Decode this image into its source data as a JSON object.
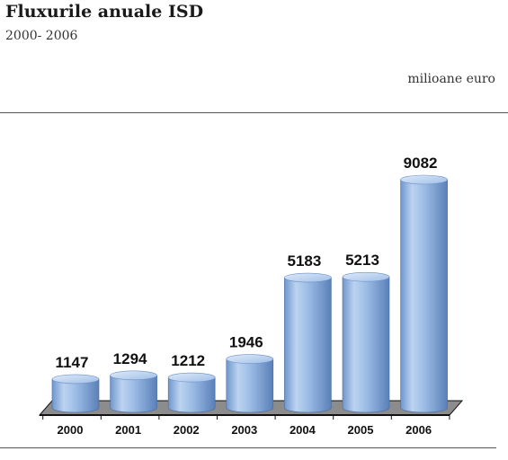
{
  "header": {
    "title": "Fluxurile anuale ISD",
    "subtitle": "2000- 2006",
    "unit": "milioane euro"
  },
  "colors": {
    "bar_light": "#c9dcf3",
    "bar_mid": "#8fb3e0",
    "bar_dark": "#5f86bd",
    "floor": "#8c8c8c"
  },
  "chart_data": {
    "type": "bar",
    "title": "Fluxurile anuale ISD",
    "subtitle": "2000- 2006",
    "ylabel": "milioane euro",
    "categories": [
      "2000",
      "2001",
      "2002",
      "2003",
      "2004",
      "2005",
      "2006"
    ],
    "values": [
      1147,
      1294,
      1212,
      1946,
      5183,
      5213,
      9082
    ],
    "ylim": [
      0,
      10000
    ],
    "grid": false,
    "legend": "none",
    "style": "3d-cylinder"
  }
}
